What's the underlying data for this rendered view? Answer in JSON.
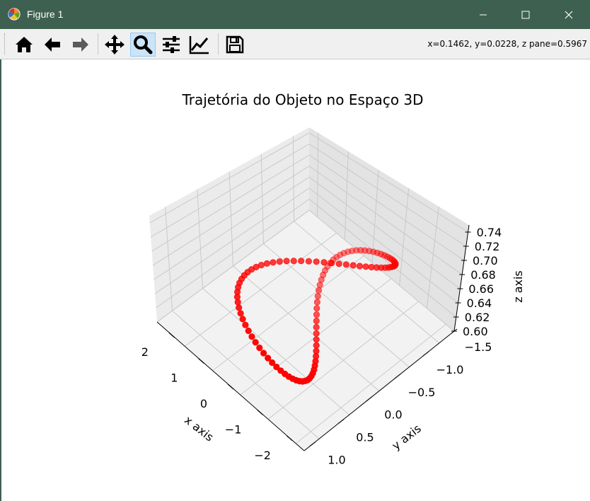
{
  "window": {
    "title": "Figure 1",
    "accent": "#3e6050"
  },
  "titlebar_buttons": {
    "minimize": "minimize-icon",
    "maximize": "maximize-icon",
    "close": "close-icon"
  },
  "toolbar": {
    "buttons": [
      "home-icon",
      "back-icon",
      "forward-icon",
      "pan-icon",
      "zoom-icon",
      "configure-subplots-icon",
      "edit-axis-icon",
      "save-icon"
    ],
    "active": "zoom-icon",
    "coords": "x=0.1462, y=0.0228, z pane=0.5967"
  },
  "chart_data": {
    "type": "scatter3d",
    "title": "Trajetória do Objeto no Espaço 3D",
    "xlabel": "x axis",
    "ylabel": "y axis",
    "zlabel": "z axis",
    "xlim": [
      -2.5,
      2.5
    ],
    "ylim": [
      -1.5,
      1.15
    ],
    "zlim": [
      0.6,
      0.75
    ],
    "x_ticks": [
      "2",
      "1",
      "0",
      "−1",
      "−2"
    ],
    "y_ticks": [
      "−1.5",
      "−1.0",
      "−0.5",
      "0.0",
      "0.5",
      "1.0"
    ],
    "z_ticks": [
      "0.60",
      "0.62",
      "0.64",
      "0.66",
      "0.68",
      "0.70",
      "0.72",
      "0.74"
    ],
    "marker_color": "#ff0000",
    "description": "Figure-eight (lemniscate) trajectory with vertical oscillation",
    "params": {
      "x_amplitude": 2.0,
      "y_amplitude": 1.0,
      "z_center": 0.675,
      "z_amplitude": 0.065,
      "points": 100
    }
  }
}
